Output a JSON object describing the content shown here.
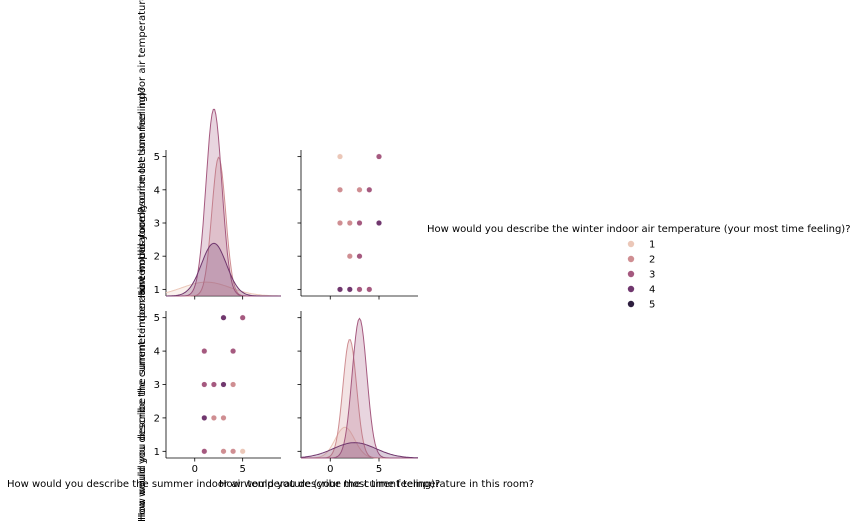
{
  "chart_data": {
    "type": "scatter",
    "figure": "pairplot",
    "variables": [
      "How would you describe the summer indoor air temperature (your most time feeling)?",
      "How would you describe the current temperature in this room?"
    ],
    "hue": {
      "title": "How would you describe the winter indoor air temperature (your most time feeling)?",
      "levels": [
        "1",
        "2",
        "3",
        "4",
        "5"
      ],
      "colors": [
        "#ebc7b8",
        "#cf8e92",
        "#a5597f",
        "#70376e",
        "#2d1e3e"
      ]
    },
    "row_labels": [
      "How would you describe the summer indoor air temperature (your most time feeling)?",
      "How would you describe the current temperature in this room?"
    ],
    "col_labels": [
      "How would you describe the summer indoor air temperature (your most time feeling)?",
      "How would you describe the current temperature in this room?"
    ],
    "top_label": "How would you describe the summer indoor air temperature (your most time feeling)?",
    "y_ticks": [
      "1",
      "2",
      "3",
      "4",
      "5"
    ],
    "x_ticks": [
      "0",
      "5"
    ],
    "diag_xlim": [
      -3,
      9
    ],
    "offdiag_xlim": [
      -3,
      9
    ],
    "ylim": [
      0.8,
      5.2
    ],
    "grid": false,
    "legend_position": "right",
    "scatter_summer_vs_current": [
      {
        "x": 1,
        "y": 5,
        "hue": "1"
      },
      {
        "x": 5,
        "y": 5,
        "hue": "3"
      },
      {
        "x": 1,
        "y": 4,
        "hue": "2"
      },
      {
        "x": 3,
        "y": 4,
        "hue": "2"
      },
      {
        "x": 4,
        "y": 4,
        "hue": "3"
      },
      {
        "x": 1,
        "y": 3,
        "hue": "2"
      },
      {
        "x": 2,
        "y": 3,
        "hue": "2"
      },
      {
        "x": 3,
        "y": 3,
        "hue": "3"
      },
      {
        "x": 5,
        "y": 3,
        "hue": "4"
      },
      {
        "x": 2,
        "y": 2,
        "hue": "2"
      },
      {
        "x": 3,
        "y": 2,
        "hue": "3"
      },
      {
        "x": 1,
        "y": 1,
        "hue": "4"
      },
      {
        "x": 2,
        "y": 1,
        "hue": "4"
      },
      {
        "x": 3,
        "y": 1,
        "hue": "3"
      },
      {
        "x": 4,
        "y": 1,
        "hue": "3"
      }
    ],
    "scatter_current_vs_summer": [
      {
        "x": 3,
        "y": 5,
        "hue": "4"
      },
      {
        "x": 5,
        "y": 5,
        "hue": "3"
      },
      {
        "x": 1,
        "y": 4,
        "hue": "3"
      },
      {
        "x": 4,
        "y": 4,
        "hue": "3"
      },
      {
        "x": 1,
        "y": 3,
        "hue": "3"
      },
      {
        "x": 2,
        "y": 3,
        "hue": "3"
      },
      {
        "x": 3,
        "y": 3,
        "hue": "4"
      },
      {
        "x": 4,
        "y": 3,
        "hue": "2"
      },
      {
        "x": 1,
        "y": 2,
        "hue": "4"
      },
      {
        "x": 2,
        "y": 2,
        "hue": "2"
      },
      {
        "x": 3,
        "y": 2,
        "hue": "2"
      },
      {
        "x": 1,
        "y": 1,
        "hue": "3"
      },
      {
        "x": 3,
        "y": 1,
        "hue": "2"
      },
      {
        "x": 4,
        "y": 1,
        "hue": "2"
      },
      {
        "x": 5,
        "y": 1,
        "hue": "1"
      }
    ],
    "kde_summer": [
      {
        "hue": "1",
        "mean": 1.2,
        "sd": 2.5,
        "height": 0.1
      },
      {
        "hue": "2",
        "mean": 2.5,
        "sd": 0.72,
        "height": 1.0
      },
      {
        "hue": "3",
        "mean": 2.0,
        "sd": 0.82,
        "height": 1.35
      },
      {
        "hue": "4",
        "mean": 2.0,
        "sd": 1.3,
        "height": 0.38
      }
    ],
    "kde_current": [
      {
        "hue": "1",
        "mean": 1.5,
        "sd": 1.0,
        "height": 0.22
      },
      {
        "hue": "2",
        "mean": 2.0,
        "sd": 0.7,
        "height": 0.85
      },
      {
        "hue": "3",
        "mean": 3.0,
        "sd": 0.75,
        "height": 1.0
      },
      {
        "hue": "4",
        "mean": 2.5,
        "sd": 2.2,
        "height": 0.11
      }
    ]
  }
}
